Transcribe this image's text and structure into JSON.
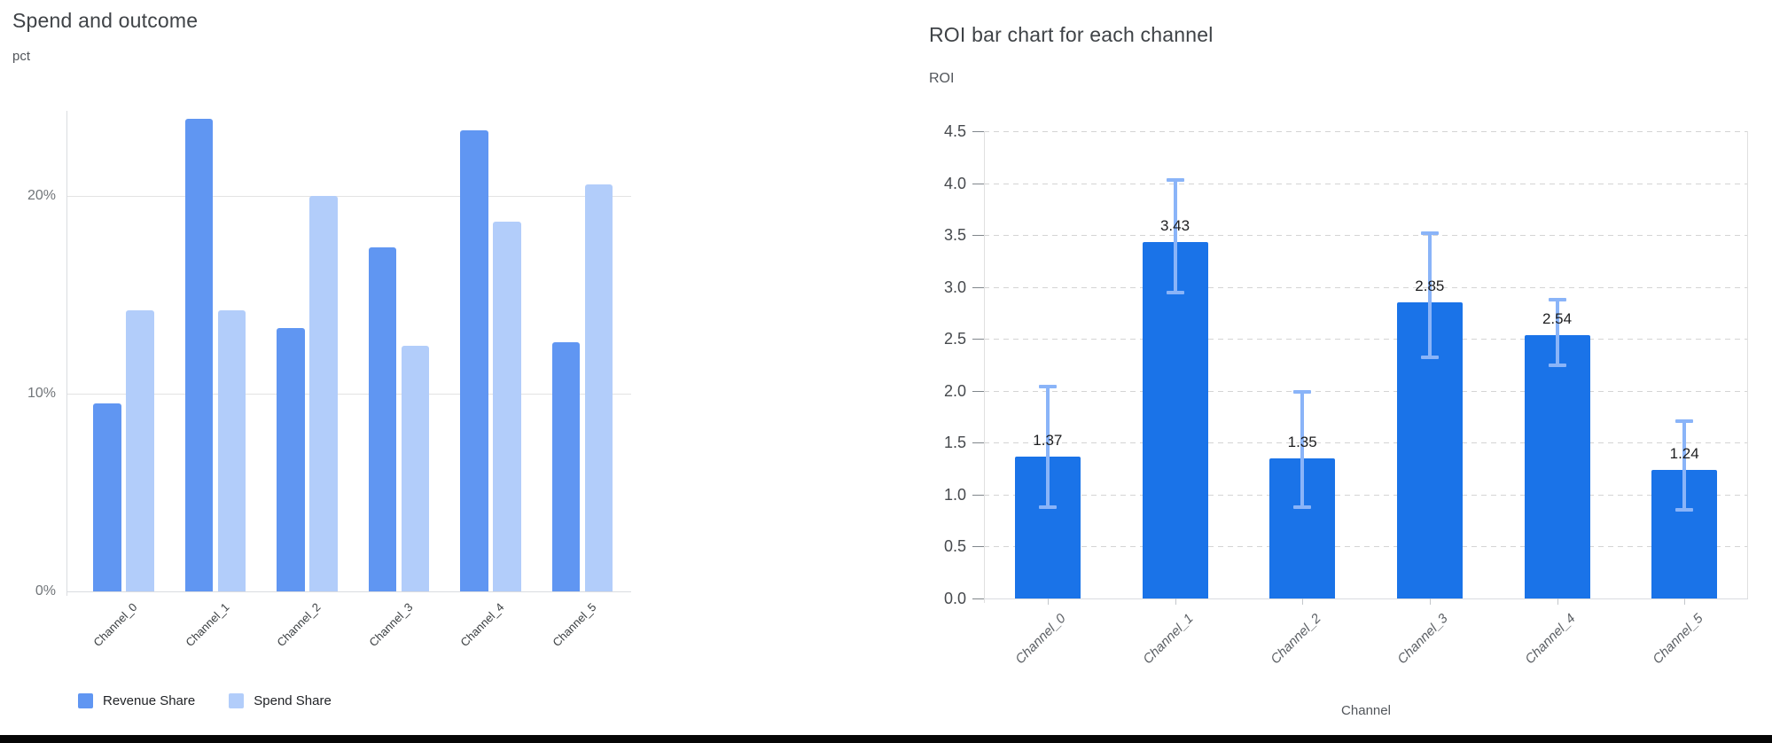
{
  "chart_data": [
    {
      "type": "bar",
      "title": "Spend and outcome",
      "ylabel": "pct",
      "categories": [
        "Channel_0",
        "Channel_1",
        "Channel_2",
        "Channel_3",
        "Channel_4",
        "Channel_5"
      ],
      "series": [
        {
          "name": "Revenue Share",
          "color": "#6096f2",
          "values": [
            9.5,
            23.9,
            13.3,
            17.4,
            23.3,
            12.6
          ]
        },
        {
          "name": "Spend Share",
          "color": "#b2cdfa",
          "values": [
            14.2,
            14.2,
            20.0,
            12.4,
            18.7,
            20.6
          ]
        }
      ],
      "y_ticks": [
        0,
        10,
        20
      ],
      "y_tick_labels": [
        "0%",
        "10%",
        "20%"
      ],
      "ylim": [
        0,
        24.3
      ],
      "grid": "solid",
      "legend_position": "bottom"
    },
    {
      "type": "bar",
      "title": "ROI bar chart for each channel",
      "ylabel": "ROI",
      "xlabel": "Channel",
      "categories": [
        "Channel_0",
        "Channel_1",
        "Channel_2",
        "Channel_3",
        "Channel_4",
        "Channel_5"
      ],
      "values": [
        1.37,
        3.43,
        1.35,
        2.85,
        2.54,
        1.24
      ],
      "data_labels": [
        "1.37",
        "3.43",
        "1.35",
        "2.85",
        "2.54",
        "1.24"
      ],
      "error_low": [
        0.88,
        2.95,
        0.88,
        2.32,
        2.25,
        0.85
      ],
      "error_high": [
        2.04,
        4.03,
        1.99,
        3.52,
        2.88,
        1.71
      ],
      "bar_color": "#1a73e8",
      "error_bar_color": "#8ab4f8",
      "y_ticks": [
        0,
        0.5,
        1,
        1.5,
        2,
        2.5,
        3,
        3.5,
        4,
        4.5
      ],
      "y_tick_labels": [
        "0.0",
        "0.5",
        "1.0",
        "1.5",
        "2.0",
        "2.5",
        "3.0",
        "3.5",
        "4.0",
        "4.5"
      ],
      "ylim": [
        0,
        4.5
      ],
      "grid": "dashed",
      "x_tick_style": "italic"
    }
  ]
}
